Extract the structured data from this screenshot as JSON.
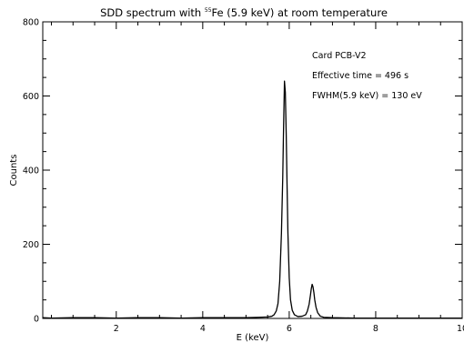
{
  "chart_data": {
    "type": "line",
    "title": {
      "before": "SDD spectrum with ",
      "superscript": "55",
      "after": "Fe (5.9 keV) at room temperature"
    },
    "xlabel": "E (keV)",
    "ylabel": "Counts",
    "xlim": [
      0.3,
      10.0
    ],
    "ylim": [
      0,
      800
    ],
    "x_ticks": [
      {
        "value": 2,
        "label": "2"
      },
      {
        "value": 4,
        "label": "4"
      },
      {
        "value": 6,
        "label": "6"
      },
      {
        "value": 8,
        "label": "8"
      },
      {
        "value": 10,
        "label": "10"
      }
    ],
    "y_ticks": [
      {
        "value": 0,
        "label": "0"
      },
      {
        "value": 200,
        "label": "200"
      },
      {
        "value": 400,
        "label": "400"
      },
      {
        "value": 600,
        "label": "600"
      },
      {
        "value": 800,
        "label": "800"
      }
    ],
    "grid": false,
    "annotations": [
      "Card PCB-V2",
      "Effective time = 496 s",
      "FWHM(5.9 keV) = 130 eV"
    ],
    "series": [
      {
        "color": "#000000",
        "x": [
          0.3,
          0.5,
          1.0,
          1.5,
          2.0,
          2.5,
          3.0,
          3.5,
          4.0,
          4.5,
          5.0,
          5.3,
          5.5,
          5.6,
          5.65,
          5.7,
          5.74,
          5.78,
          5.82,
          5.85,
          5.87,
          5.89,
          5.91,
          5.93,
          5.95,
          5.97,
          6.0,
          6.03,
          6.07,
          6.12,
          6.2,
          6.3,
          6.38,
          6.42,
          6.46,
          6.49,
          6.51,
          6.53,
          6.55,
          6.57,
          6.59,
          6.62,
          6.66,
          6.72,
          6.8,
          7.0,
          7.5,
          8.0,
          8.5,
          9.0,
          9.5,
          10.0
        ],
        "y": [
          2,
          1,
          2,
          2,
          1,
          2,
          2,
          1,
          2,
          2,
          2,
          3,
          4,
          6,
          10,
          20,
          40,
          100,
          230,
          380,
          520,
          640,
          610,
          500,
          360,
          230,
          110,
          50,
          22,
          10,
          5,
          6,
          10,
          20,
          38,
          62,
          80,
          92,
          85,
          70,
          50,
          30,
          15,
          6,
          3,
          2,
          1,
          1,
          1,
          1,
          1,
          1
        ]
      }
    ]
  }
}
